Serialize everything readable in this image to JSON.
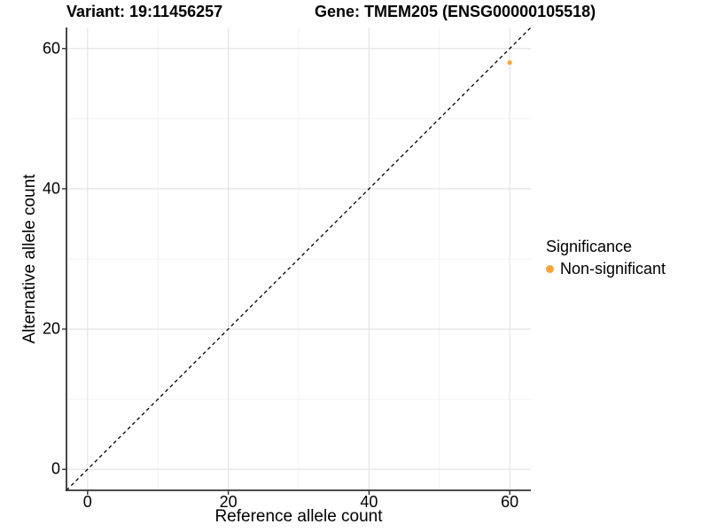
{
  "chart_data": {
    "type": "scatter",
    "title_left": "Variant: 19:11456257",
    "title_right": "Gene: TMEM205 (ENSG00000105518)",
    "xlabel": "Reference allele count",
    "ylabel": "Alternative allele count",
    "xlim": [
      -3,
      63
    ],
    "ylim": [
      -3,
      63
    ],
    "x_ticks": [
      0,
      20,
      40,
      60
    ],
    "y_ticks": [
      0,
      20,
      40,
      60
    ],
    "grid": {
      "major": true,
      "minor": true
    },
    "series": [
      {
        "name": "Non-significant",
        "color": "#FAA43A",
        "points": [
          {
            "x": 60,
            "y": 58
          }
        ]
      }
    ],
    "identity_line": {
      "style": "dashed",
      "color": "#000000",
      "x0": -3,
      "y0": -3,
      "x1": 63,
      "y1": 63
    },
    "legend": {
      "title": "Significance",
      "position": "right",
      "items": [
        {
          "label": "Non-significant",
          "color": "#FAA43A"
        }
      ]
    },
    "colors": {
      "axis": "#333333",
      "tick": "#333333",
      "grid_major": "#e4e4e4",
      "grid_minor": "#f0f0f0",
      "text": "#000000",
      "background": "#ffffff"
    }
  }
}
